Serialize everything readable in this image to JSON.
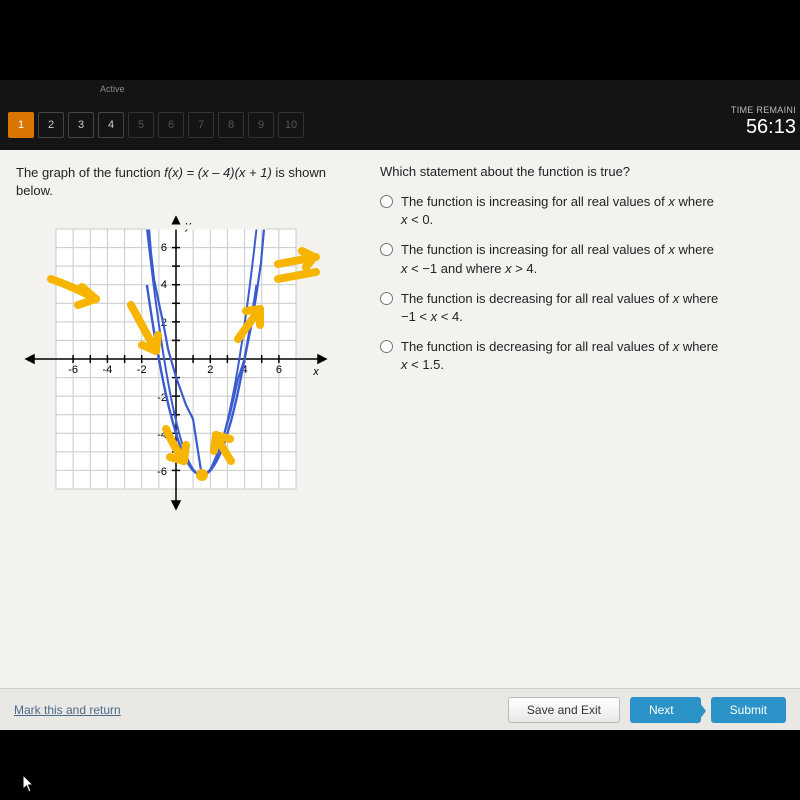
{
  "nav": {
    "header_hint": "Active",
    "items": [
      "1",
      "2",
      "3",
      "4",
      "5",
      "6",
      "7",
      "8",
      "9",
      "10"
    ],
    "current_index": 0,
    "enabled_count": 4,
    "timer_label": "TIME REMAINI",
    "timer_value": "56:13"
  },
  "content": {
    "prompt_pre": "The graph of the function ",
    "prompt_fn": "f(x) = (x – 4)(x + 1)",
    "prompt_post": " is shown below.",
    "question": "Which statement about the function is true?",
    "options": [
      "The function is increasing for all real values of x where x < 0.",
      "The function is increasing for all real values of x where x < –1 and where x > 4.",
      "The function is decreasing for all real values of x where –1 < x < 4.",
      "The function is decreasing for all real values of x where x < 1.5."
    ]
  },
  "graph": {
    "x_axis_label": "x",
    "y_axis_label": "y",
    "x_ticks": [
      -6,
      -4,
      -2,
      2,
      4,
      6
    ],
    "y_ticks": [
      -6,
      -4,
      -2,
      2,
      4,
      6
    ],
    "xlim": [
      -7,
      7
    ],
    "ylim": [
      -7,
      7
    ],
    "grid_color": "#c9c9c9",
    "axis_color": "#000000",
    "curve_color": "#3b5bd0",
    "annotation_color": "#f7b500",
    "grid_bg": "#ffffff",
    "curve_roots": [
      -1,
      4
    ],
    "curve_vertex": [
      1.5,
      -6.25
    ]
  },
  "footer": {
    "mark": "Mark this and return",
    "save": "Save and Exit",
    "next": "Next",
    "submit": "Submit"
  }
}
